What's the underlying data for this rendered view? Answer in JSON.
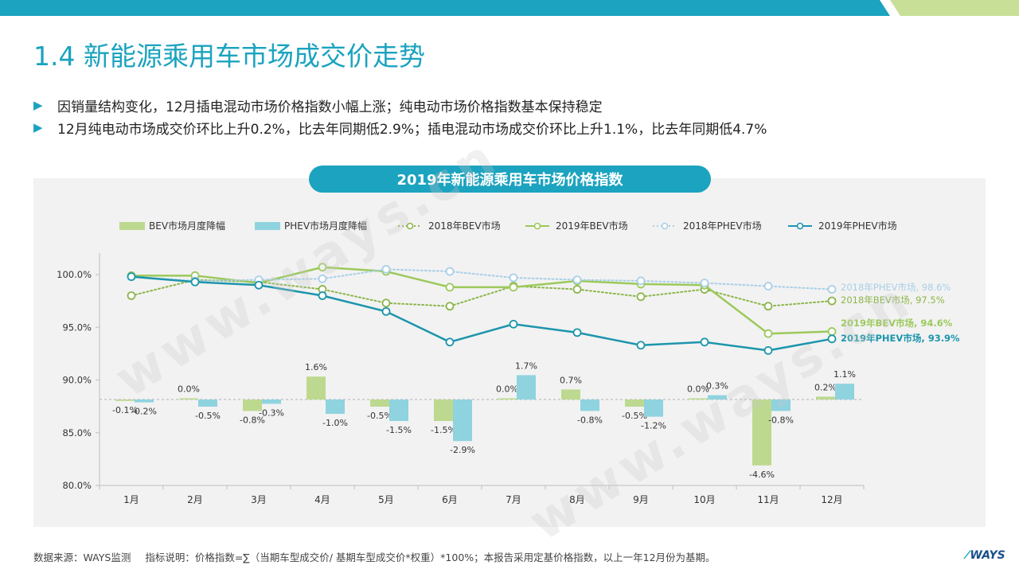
{
  "page": {
    "title": "1.4 新能源乘用车市场成交价走势",
    "bullets": [
      "因销量结构变化，12月插电混动市场价格指数小幅上涨；纯电动市场价格指数基本保持稳定",
      "12月纯电动市场成交价环比上升0.2%，比去年同期低2.9%；插电混动市场成交价环比上升1.1%，比去年同期低4.7%"
    ],
    "watermark": "www.ways.cn",
    "footer_source": "数据来源：WAYS监测",
    "footer_note": "指标说明：价格指数=∑（当期车型成交价/ 基期车型成交价*权重）*100%；本报告采用定基价格指数，以上一年12月份为基期。",
    "logo": "WAYS"
  },
  "colors": {
    "accent": "#1ba3bf",
    "bev_bar": "#bcd98f",
    "phev_bar": "#8fd3df",
    "bev_2018": "#8cb64a",
    "bev_2019": "#9cc95b",
    "phev_2018": "#a9cfe7",
    "phev_2019": "#1d95ac",
    "panel": "#f2f2f2"
  },
  "chart_data": {
    "type": "bar+line",
    "title": "2019年新能源乘用车市场价格指数",
    "categories": [
      "1月",
      "2月",
      "3月",
      "4月",
      "5月",
      "6月",
      "7月",
      "8月",
      "9月",
      "10月",
      "11月",
      "12月"
    ],
    "y_axis": {
      "min": 80,
      "max": 100,
      "ticks": [
        80,
        85,
        90,
        95,
        100
      ],
      "tick_labels": [
        "80.0%",
        "85.0%",
        "90.0%",
        "95.0%",
        "100.0%"
      ]
    },
    "bar_series": [
      {
        "name": "BEV市场月度降幅",
        "values": [
          -0.1,
          0.0,
          -0.8,
          1.6,
          -0.5,
          -1.5,
          0.0,
          0.7,
          -0.5,
          0.0,
          -4.6,
          0.2
        ],
        "labels": [
          "-0.1%",
          "0.0%",
          "-0.8%",
          "1.6%",
          "-0.5%",
          "-1.5%",
          "0.0%",
          "0.7%",
          "-0.5%",
          "0.0%",
          "-4.6%",
          "0.2%"
        ]
      },
      {
        "name": "PHEV市场月度降幅",
        "values": [
          -0.2,
          -0.5,
          -0.3,
          -1.0,
          -1.5,
          -2.9,
          1.7,
          -0.8,
          -1.2,
          0.3,
          -0.8,
          1.1
        ],
        "labels": [
          "-0.2%",
          "-0.5%",
          "-0.3%",
          "-1.0%",
          "-1.5%",
          "-2.9%",
          "1.7%",
          "-0.8%",
          "-1.2%",
          "0.3%",
          "-0.8%",
          "1.1%"
        ]
      }
    ],
    "line_series": [
      {
        "name": "2018年BEV市场",
        "style": "dotted",
        "values": [
          98.0,
          99.5,
          99.3,
          98.6,
          97.3,
          97.0,
          98.9,
          98.6,
          97.9,
          98.6,
          97.0,
          97.5
        ],
        "end_label": "2018年BEV市场, 97.5%"
      },
      {
        "name": "2019年BEV市场",
        "style": "solid",
        "values": [
          99.9,
          99.9,
          99.2,
          100.7,
          100.3,
          98.8,
          98.8,
          99.4,
          99.1,
          99.0,
          94.4,
          94.6
        ],
        "end_label": "2019年BEV市场, 94.6%"
      },
      {
        "name": "2018年PHEV市场",
        "style": "dotted",
        "values": [
          99.8,
          99.4,
          99.5,
          99.6,
          100.5,
          100.3,
          99.7,
          99.5,
          99.4,
          99.2,
          98.9,
          98.6
        ],
        "end_label": "2018年PHEV市场, 98.6%"
      },
      {
        "name": "2019年PHEV市场",
        "style": "solid",
        "values": [
          99.8,
          99.3,
          99.0,
          98.0,
          96.5,
          93.6,
          95.3,
          94.5,
          93.3,
          93.6,
          92.8,
          93.9
        ],
        "end_label": "2019年PHEV市场, 93.9%"
      }
    ],
    "legend_position": "top"
  }
}
